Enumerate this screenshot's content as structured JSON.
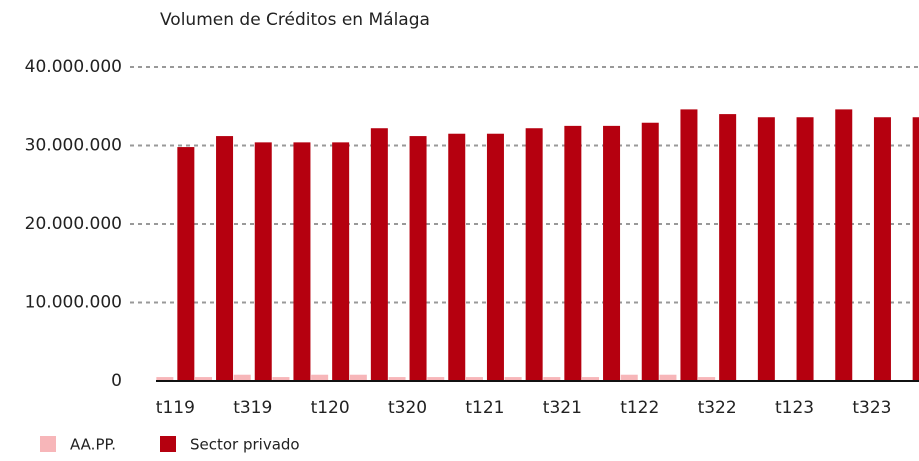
{
  "chart_data": {
    "type": "bar",
    "title": "Volumen de Créditos  en Málaga",
    "categories": [
      "t119",
      null,
      "t319",
      null,
      "t120",
      null,
      "t320",
      null,
      "t121",
      null,
      "t321",
      null,
      "t122",
      null,
      "t322",
      null,
      "t123",
      null,
      "t323",
      null
    ],
    "series": [
      {
        "name": "AA.PP.",
        "color": "#f7b6b9",
        "values": [
          500000,
          500000,
          800000,
          500000,
          800000,
          800000,
          500000,
          500000,
          500000,
          500000,
          500000,
          500000,
          800000,
          800000,
          500000,
          100000,
          100000,
          100000,
          100000,
          100000
        ]
      },
      {
        "name": "Sector privado",
        "color": "#b5000f",
        "values": [
          29800000,
          31200000,
          30400000,
          30400000,
          30400000,
          32200000,
          31200000,
          31500000,
          31500000,
          32200000,
          32500000,
          32500000,
          32900000,
          34600000,
          34000000,
          33600000,
          33600000,
          34600000,
          33600000,
          33600000
        ]
      }
    ],
    "ylim": [
      0,
      40000000
    ],
    "yticks": [
      0,
      {
        "value": 10000000,
        "label": "10.000.000"
      },
      {
        "value": 20000000,
        "label": "20.000.000"
      },
      {
        "value": 30000000,
        "label": "30.000.000"
      },
      {
        "value": 40000000,
        "label": "40.000.000"
      }
    ],
    "grid": true,
    "legend": "bottom"
  }
}
